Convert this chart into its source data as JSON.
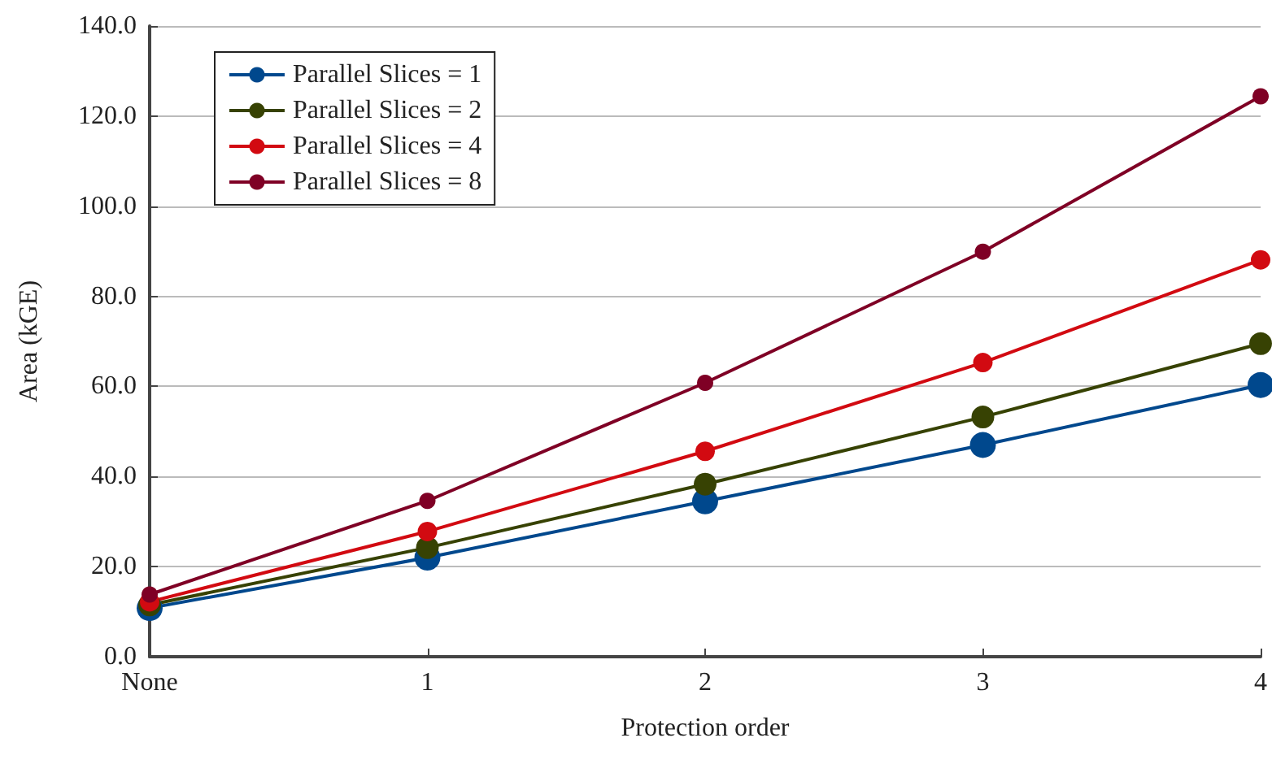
{
  "chart_data": {
    "type": "line",
    "xlabel": "Protection order",
    "ylabel": "Area (kGE)",
    "categories": [
      "None",
      "1",
      "2",
      "3",
      "4"
    ],
    "series": [
      {
        "name": "Parallel Slices = 1",
        "color": "#00488d",
        "values": [
          10.8,
          22,
          34.5,
          47,
          60.3
        ]
      },
      {
        "name": "Parallel Slices = 2",
        "color": "#374203",
        "values": [
          11.5,
          24.2,
          38.3,
          53.2,
          69.5
        ]
      },
      {
        "name": "Parallel Slices = 4",
        "color": "#d20a11",
        "values": [
          12.2,
          27.8,
          45.6,
          65.3,
          88.1
        ]
      },
      {
        "name": "Parallel Slices = 8",
        "color": "#7f0025",
        "values": [
          13.8,
          34.6,
          60.8,
          89.9,
          124.4
        ]
      }
    ],
    "ylim": [
      0,
      140
    ],
    "yticks": [
      {
        "value": 0,
        "label": "0.0"
      },
      {
        "value": 20,
        "label": "20.0"
      },
      {
        "value": 40,
        "label": "40.0"
      },
      {
        "value": 60,
        "label": "60.0"
      },
      {
        "value": 80,
        "label": "80.0"
      },
      {
        "value": 100,
        "label": "100.0"
      },
      {
        "value": 120,
        "label": "120.0"
      },
      {
        "value": 140,
        "label": "140.0"
      }
    ],
    "grid": "y",
    "legend": "top left",
    "marker": "circle",
    "line_style": "solid"
  }
}
